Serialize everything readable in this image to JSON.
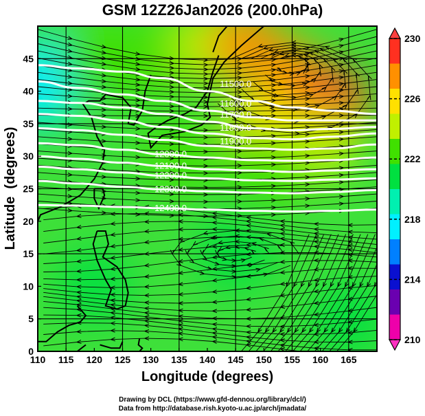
{
  "chart_data": {
    "type": "heatmap",
    "title": "GSM 12Z26Jan2026 (200.0hPa)",
    "xlabel": "Longitude (degrees)",
    "ylabel": "Latitude  (degrees)",
    "xlim": [
      110,
      170
    ],
    "ylim": [
      0,
      50
    ],
    "xticks": [
      110,
      115,
      120,
      125,
      130,
      135,
      140,
      145,
      150,
      155,
      160,
      165
    ],
    "yticks": [
      0,
      5,
      10,
      15,
      20,
      25,
      30,
      35,
      40,
      45
    ],
    "grid": true,
    "shading_variable": "temperature",
    "colorbar": {
      "range": [
        210,
        230
      ],
      "ticks": [
        210,
        214,
        218,
        222,
        226,
        230
      ],
      "colors": [
        "#ee00aa",
        "#6a00b0",
        "#0a10d0",
        "#0080ff",
        "#00f0ff",
        "#00f0b0",
        "#00e040",
        "#40e000",
        "#c0f000",
        "#ffe000",
        "#ff9000",
        "#ff3020"
      ],
      "extend": "both",
      "placement": "right"
    },
    "temperature_field": [
      {
        "lon": 110,
        "lat": 40,
        "value": 217
      },
      {
        "lon": 112,
        "lat": 43,
        "value": 218
      },
      {
        "lon": 120,
        "lat": 45,
        "value": 222
      },
      {
        "lon": 130,
        "lat": 45,
        "value": 223
      },
      {
        "lon": 140,
        "lat": 47,
        "value": 224
      },
      {
        "lon": 147,
        "lat": 47,
        "value": 227
      },
      {
        "lon": 155,
        "lat": 42,
        "value": 228
      },
      {
        "lon": 162,
        "lat": 38,
        "value": 229
      },
      {
        "lon": 150,
        "lat": 35,
        "value": 226
      },
      {
        "lon": 160,
        "lat": 32,
        "value": 224
      },
      {
        "lon": 135,
        "lat": 30,
        "value": 222
      },
      {
        "lon": 150,
        "lat": 28,
        "value": 223
      },
      {
        "lon": 120,
        "lat": 10,
        "value": 221
      },
      {
        "lon": 145,
        "lat": 15,
        "value": 221
      },
      {
        "lon": 165,
        "lat": 5,
        "value": 221
      }
    ],
    "contour_variable": "geopotential height (m)",
    "contours": [
      {
        "level": 11500.0,
        "label": "11500.0",
        "lats": [
          44,
          43.5,
          43,
          42,
          40,
          38.5,
          37.5,
          37,
          36.5
        ]
      },
      {
        "level": 11600.0,
        "label": "11600.0",
        "lats": [
          41.5,
          40.5,
          39.5,
          38.5,
          37,
          36,
          35.5,
          35.5,
          35.5
        ]
      },
      {
        "level": 11700.0,
        "label": "11700.0",
        "lats": [
          38.5,
          38.2,
          37.5,
          36.5,
          35.3,
          34.3,
          34,
          34.2,
          34.5
        ]
      },
      {
        "level": 11800.0,
        "label": "11800.0",
        "lats": [
          36.5,
          36.2,
          35.5,
          34.5,
          33.5,
          32.8,
          32.6,
          33,
          33.5
        ]
      },
      {
        "level": 11900.0,
        "label": "11900.0",
        "lats": [
          34.3,
          34,
          33.3,
          32.5,
          31.6,
          31.2,
          31,
          31.2,
          31.8
        ]
      },
      {
        "level": 12000.0,
        "label": "12000.0",
        "lats": [
          32,
          31.7,
          31,
          30.3,
          29.8,
          29.4,
          29.3,
          29.4,
          29.8
        ]
      },
      {
        "level": 12100.0,
        "label": "12100.0",
        "lats": [
          30,
          29.6,
          29,
          28.5,
          28,
          27.8,
          27.6,
          27.8,
          28
        ]
      },
      {
        "level": 12200.0,
        "label": "12200.0",
        "lats": [
          28.4,
          28,
          27.5,
          27,
          26.6,
          26.3,
          26.2,
          26.4,
          26.6
        ]
      },
      {
        "level": 12300.0,
        "label": "12300.0",
        "lats": [
          26.2,
          25.8,
          25.3,
          24.9,
          24.6,
          24.4,
          24.3,
          24.5,
          24.8
        ]
      },
      {
        "level": 12400.0,
        "label": "12400.0",
        "lats": [
          22.5,
          22.4,
          22.2,
          22,
          21.8,
          21.6,
          21.5,
          21.6,
          21.8
        ]
      }
    ],
    "contour_lons": [
      110,
      117,
      125,
      132,
      140,
      148,
      155,
      162,
      170
    ],
    "vector_field": "streamlines (wind)"
  },
  "footer": {
    "line1": "Drawing by DCL (https://www.gfd-dennou.org/library/dcl/)",
    "line2": "Data from http://database.rish.kyoto-u.ac.jp/arch/jmadata/"
  }
}
